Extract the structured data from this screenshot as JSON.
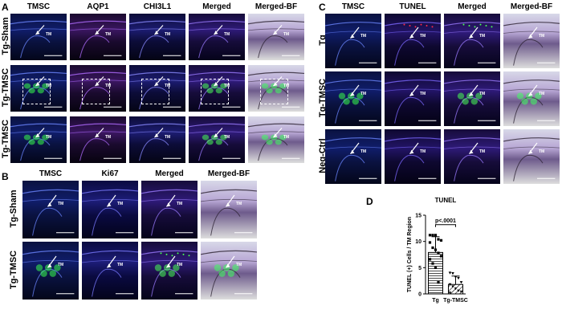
{
  "panels": {
    "A": {
      "letter": "A",
      "columns": [
        "TMSC",
        "AQP1",
        "CHI3L1",
        "Merged",
        "Merged-BF"
      ],
      "rows": [
        "Tg-Sham",
        "Tg-TMSC",
        "Tg-TMSC"
      ],
      "marker": "TM"
    },
    "B": {
      "letter": "B",
      "columns": [
        "TMSC",
        "Ki67",
        "Merged",
        "Merged-BF"
      ],
      "rows": [
        "Tg-Sham",
        "Tg-TMSC"
      ],
      "marker": "TM"
    },
    "C": {
      "letter": "C",
      "columns": [
        "TMSC",
        "TUNEL",
        "Merged",
        "Merged-BF"
      ],
      "rows": [
        "Tg",
        "Tg-TMSC",
        "Neg-Ctrl"
      ],
      "marker": "TM"
    },
    "D": {
      "letter": "D"
    }
  },
  "chart_data": {
    "type": "bar",
    "title": "TUNEL",
    "ylabel": "TUNEL (+) Cells / TM Region",
    "xlabel": "",
    "categories": [
      "Tg",
      "Tg-TMSC"
    ],
    "values": [
      7.9,
      1.8
    ],
    "errors": [
      3.0,
      1.6
    ],
    "ylim": [
      0,
      15
    ],
    "yticks": [
      "0",
      "5",
      "10",
      "15"
    ],
    "points": {
      "Tg": [
        11.2,
        11.2,
        11.2,
        10.4,
        10.2,
        9.8,
        8.8,
        8.4,
        7.8,
        7.2,
        6.6,
        5.8,
        5.0,
        2.2
      ],
      "Tg-TMSC": [
        4.0,
        3.9,
        3.2,
        3.0,
        2.2,
        1.8,
        1.4,
        1.0,
        0.6,
        0.4,
        0.2
      ]
    },
    "significance": "p<.0001",
    "colors": {
      "Tg": "#ffffff",
      "Tg-TMSC": "#ffffff",
      "edge": "#000000"
    }
  }
}
